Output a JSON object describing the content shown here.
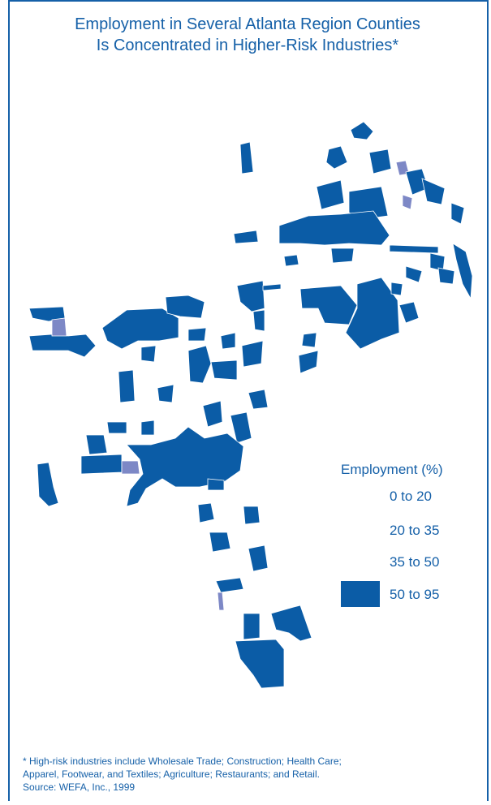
{
  "title": [
    "Employment in Several Atlanta Region Counties",
    "Is Concentrated in Higher-Risk Industries*"
  ],
  "legend": {
    "title": "Employment (%)",
    "items": [
      "0 to 20",
      "20 to 35",
      "35 to 50",
      "50 to 95"
    ]
  },
  "footnote": [
    "* High-risk industries include Wholesale Trade; Construction; Health Care;",
    "Apparel, Footwear, and Textiles; Agriculture; Restaurants; and Retail.",
    "Source: WEFA, Inc., 1999"
  ]
}
